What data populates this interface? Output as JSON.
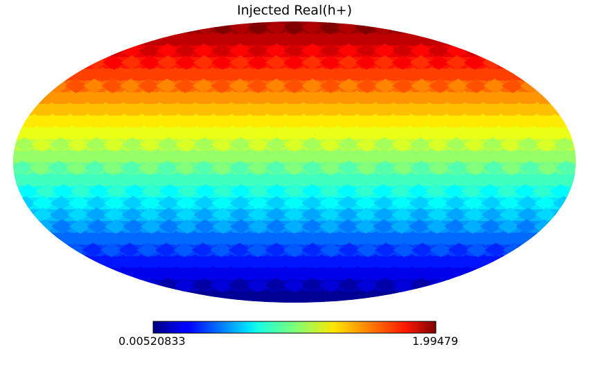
{
  "chart_data": {
    "type": "heatmap",
    "projection": "mollweide",
    "title": "Injected Real(h+)",
    "colormap": "jet",
    "colorbar": {
      "min_label": "0.00520833",
      "max_label": "1.99479",
      "min": 0.00520833,
      "max": 1.99479,
      "orientation": "horizontal",
      "placement": "bottom"
    },
    "pixel_rings": 24,
    "value_trend": "increases from south pole (min) to north pole (max)"
  }
}
